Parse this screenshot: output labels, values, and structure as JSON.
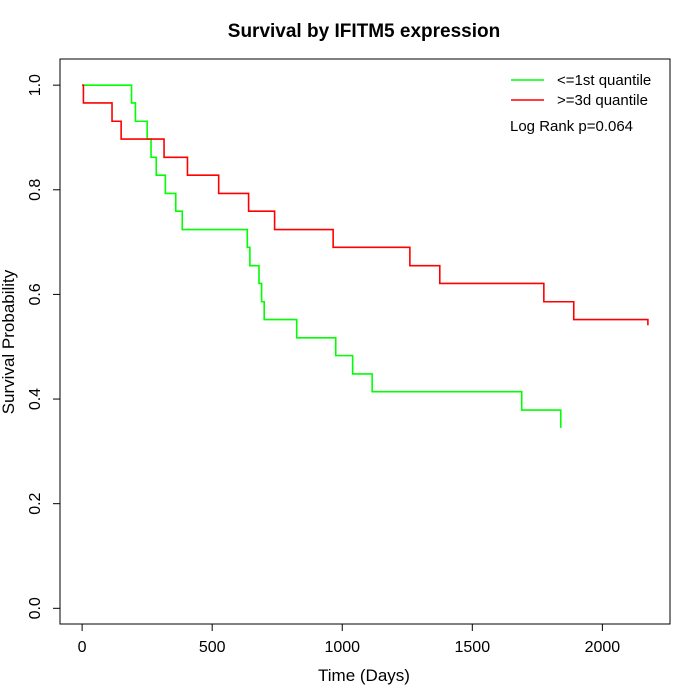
{
  "chart_data": {
    "type": "line",
    "subtype": "kaplan-meier step",
    "title": "Survival by IFITM5 expression",
    "xlabel": "Time (Days)",
    "ylabel": "Survival Probability",
    "xlim": [
      -85,
      2260
    ],
    "ylim": [
      -0.03,
      1.05
    ],
    "xticks": [
      0,
      500,
      1000,
      1500,
      2000
    ],
    "yticks": [
      0.0,
      0.2,
      0.4,
      0.6,
      0.8,
      1.0
    ],
    "xtick_labels": [
      "0",
      "500",
      "1000",
      "1500",
      "2000"
    ],
    "ytick_labels": [
      "0.0",
      "0.2",
      "0.4",
      "0.6",
      "0.8",
      "1.0"
    ],
    "grid": false,
    "legend_position": "top-right",
    "annotation": "Log Rank p=0.064",
    "series": [
      {
        "name": "<=1st quantile",
        "color": "#00ff00",
        "x": [
          0,
          190,
          205,
          250,
          265,
          285,
          320,
          360,
          385,
          635,
          645,
          680,
          690,
          700,
          825,
          975,
          1040,
          1115,
          1690,
          1840
        ],
        "y": [
          1.0,
          0.966,
          0.931,
          0.897,
          0.862,
          0.828,
          0.793,
          0.759,
          0.724,
          0.69,
          0.655,
          0.621,
          0.586,
          0.552,
          0.517,
          0.483,
          0.448,
          0.414,
          0.379,
          0.345
        ]
      },
      {
        "name": ">=3d quantile",
        "color": "#ff0000",
        "x": [
          0,
          5,
          115,
          150,
          315,
          405,
          525,
          640,
          740,
          965,
          1260,
          1375,
          1775,
          1890,
          2175
        ],
        "y": [
          1.0,
          0.966,
          0.931,
          0.897,
          0.862,
          0.828,
          0.793,
          0.759,
          0.724,
          0.69,
          0.655,
          0.621,
          0.586,
          0.552,
          0.541
        ]
      }
    ]
  }
}
